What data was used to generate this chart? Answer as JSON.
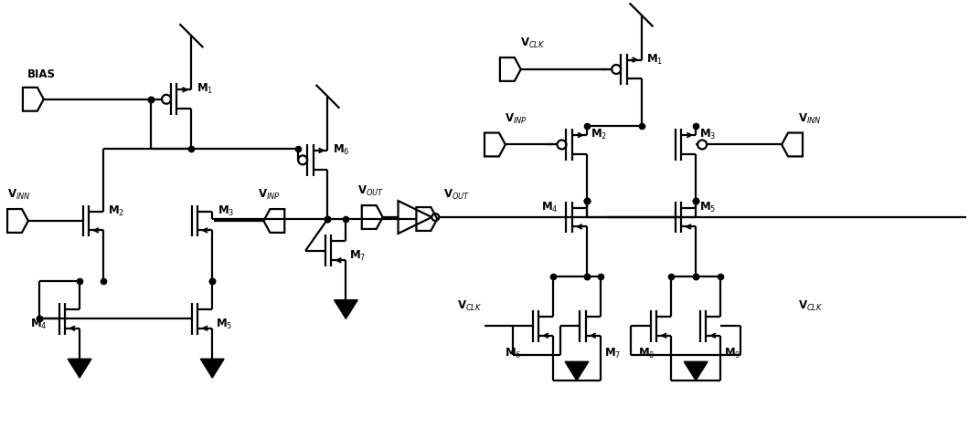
{
  "fig_width": 10.6,
  "fig_height": 4.81,
  "bg_color": "#ffffff",
  "line_color": "#000000",
  "lw": 1.6,
  "dot_size": 4.5
}
